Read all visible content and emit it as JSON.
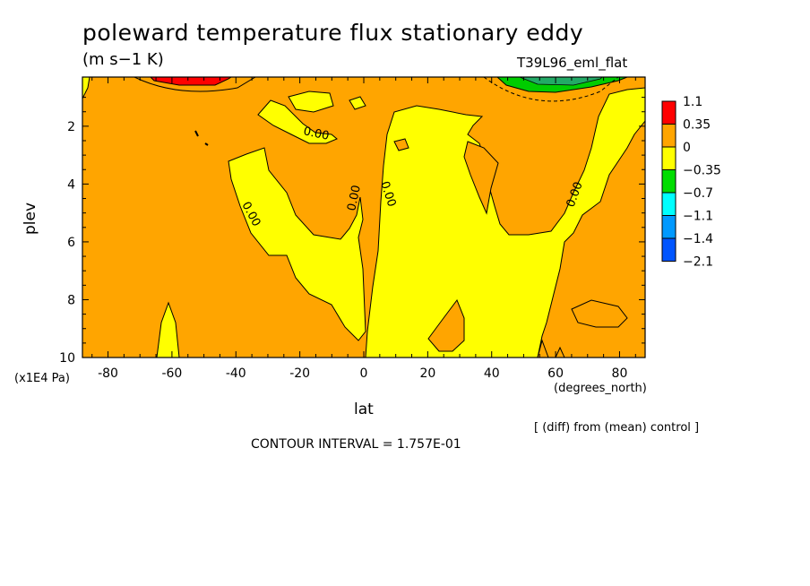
{
  "chart_data": {
    "type": "contour",
    "title": "poleward temperature flux stationary eddy",
    "units": "(m s−1 K)",
    "run_label": "T39L96_eml_flat",
    "xlabel": "lat",
    "x_unit_label": "(degrees_north)",
    "ylabel": "plev",
    "y_unit_label": "(x1E4 Pa)",
    "xlim": [
      -88,
      88
    ],
    "ylim": [
      10,
      0.3
    ],
    "x_ticks": [
      -80,
      -60,
      -40,
      -20,
      0,
      20,
      40,
      60,
      80
    ],
    "y_ticks": [
      2,
      4,
      6,
      8,
      10
    ],
    "contour_labels": [
      "0.00",
      "0.00",
      "0.00",
      "0.00",
      "0.00"
    ],
    "legend": {
      "levels": [
        "1.1",
        "0.35",
        "0",
        "−0.35",
        "−0.7",
        "−1.1",
        "−1.4",
        "−2.1"
      ],
      "colors": [
        "#ff0000",
        "#ffa500",
        "#ffff00",
        "#00dd00",
        "#00ffff",
        "#0099ff",
        "#0055ff"
      ]
    },
    "diff_note": "[ (diff) from (mean) control ]",
    "contour_interval": "CONTOUR INTERVAL = 1.757E-01",
    "regions": [
      {
        "name": "positive background",
        "level": "0 to 0.35",
        "color": "#ffa500"
      },
      {
        "name": "southern mid-lat negative tongue",
        "level": "-0.35 to 0",
        "color": "#ffff00"
      },
      {
        "name": "equatorial negative band",
        "level": "-0.35 to 0",
        "color": "#ffff00"
      },
      {
        "name": "northern subtropical negative region",
        "level": "-0.35 to 0",
        "color": "#ffff00"
      },
      {
        "name": "southern upper positive maximum",
        "level": "0.35 to 1.1",
        "color": "#ff0000"
      },
      {
        "name": "northern upper negative minimum",
        "level": "-2.1 to -0.35",
        "color": "#00dd00"
      }
    ]
  }
}
